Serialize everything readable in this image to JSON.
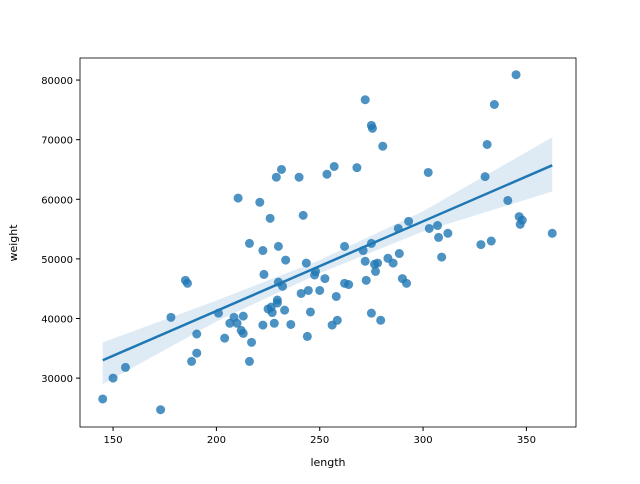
{
  "chart_data": {
    "type": "regplot",
    "xlabel": "length",
    "ylabel": "weight",
    "color": "#1f77b4",
    "xlim": [
      134,
      374
    ],
    "ylim": [
      21800,
      83700
    ],
    "xticks": [
      150,
      200,
      250,
      300,
      350
    ],
    "yticks": [
      30000,
      40000,
      50000,
      60000,
      70000,
      80000
    ],
    "x": [
      145,
      150,
      156,
      173,
      178,
      185,
      186,
      188,
      190.5,
      190.5,
      201,
      204,
      206.5,
      208.5,
      210,
      210.5,
      212,
      213,
      213,
      216,
      216,
      217,
      221,
      222.5,
      222.5,
      223,
      225,
      226,
      226.5,
      227,
      228,
      229,
      229.5,
      229.5,
      230,
      230,
      231.5,
      232,
      233,
      233.5,
      236,
      240,
      241,
      242,
      243.5,
      244,
      244.5,
      245.5,
      247.5,
      248,
      250,
      252.5,
      253.5,
      256,
      257,
      258,
      258.5,
      262,
      262,
      264,
      268,
      271,
      272,
      272,
      272.5,
      275,
      275,
      275.5,
      275,
      276.5,
      277,
      278,
      279.5,
      280.5,
      283,
      285.5,
      288,
      288.5,
      290,
      292,
      293,
      302.5,
      303,
      307,
      307.5,
      309,
      312,
      328,
      330,
      331,
      333,
      334.5,
      341,
      345,
      346.5,
      347,
      348,
      362.5
    ],
    "y": [
      26500,
      30000,
      31800,
      24700,
      40200,
      46400,
      45900,
      32800,
      37400,
      34200,
      40900,
      36700,
      39200,
      40200,
      39200,
      60200,
      38000,
      40400,
      37500,
      32800,
      52600,
      36000,
      59500,
      38900,
      51400,
      47400,
      41600,
      56800,
      41900,
      41000,
      39200,
      63700,
      43100,
      42600,
      52100,
      46100,
      65000,
      45400,
      41400,
      49800,
      39000,
      63700,
      44200,
      57300,
      49300,
      37000,
      44700,
      41100,
      47300,
      47900,
      44700,
      46700,
      64200,
      38900,
      65500,
      43700,
      39700,
      52100,
      45900,
      45700,
      65300,
      51400,
      49600,
      76700,
      46400,
      72400,
      52600,
      71900,
      40900,
      49100,
      47900,
      49300,
      39700,
      68900,
      50100,
      49300,
      55100,
      50900,
      46700,
      45900,
      56300,
      64500,
      55100,
      55600,
      53600,
      50300,
      54300,
      52400,
      63800,
      69200,
      53000,
      75900,
      59800,
      80900,
      57100,
      55800,
      56500,
      54300
    ],
    "regression": {
      "x": [
        145,
        362.5
      ],
      "y": [
        33000,
        65700
      ]
    },
    "confidence_band": {
      "x": [
        145,
        200,
        250,
        300,
        362.5
      ],
      "lower": [
        29000,
        39500,
        47600,
        54600,
        61300
      ],
      "upper": [
        36000,
        43000,
        49800,
        58000,
        70400
      ]
    }
  }
}
